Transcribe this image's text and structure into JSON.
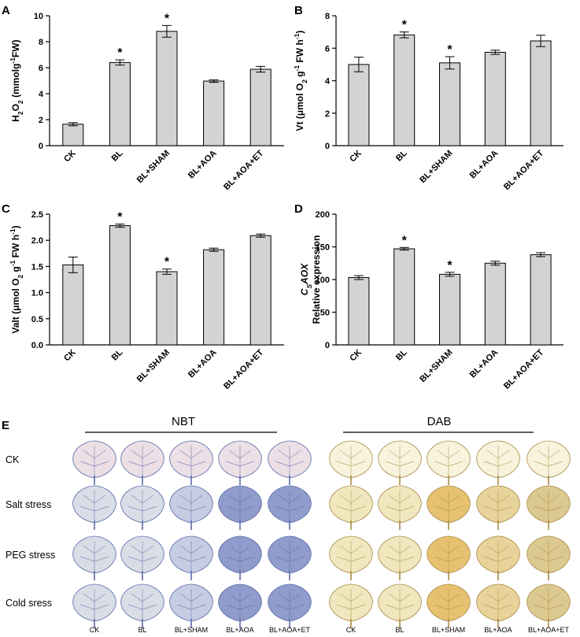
{
  "chart_data": [
    {
      "type": "bar",
      "panel": "A",
      "ylabel_parts": [
        [
          "H",
          ""
        ],
        [
          "2",
          "sub"
        ],
        [
          "O",
          ""
        ],
        [
          "2",
          "sub"
        ],
        [
          " (mmolg",
          ""
        ],
        [
          "-1",
          "sup"
        ],
        [
          "FW)",
          ""
        ]
      ],
      "ylim": [
        0,
        10
      ],
      "yticks": [
        0,
        2,
        4,
        6,
        8,
        10
      ],
      "categories": [
        "CK",
        "BL",
        "BL+SHAM",
        "BL+AOA",
        "BL+AOA+ET"
      ],
      "values": [
        1.65,
        6.4,
        8.8,
        4.97,
        5.88
      ],
      "errors": [
        0.12,
        0.2,
        0.45,
        0.1,
        0.22
      ],
      "significant": [
        "",
        "*",
        "*",
        "",
        ""
      ]
    },
    {
      "type": "bar",
      "panel": "B",
      "ylabel_parts": [
        [
          "Vt (μmol O",
          ""
        ],
        [
          "2",
          "sub"
        ],
        [
          " g",
          ""
        ],
        [
          "-1",
          "sup"
        ],
        [
          " FW h",
          ""
        ],
        [
          "-1",
          "sup"
        ],
        [
          ")",
          ""
        ]
      ],
      "ylim": [
        0,
        8
      ],
      "yticks": [
        0,
        2,
        4,
        6,
        8
      ],
      "categories": [
        "CK",
        "BL",
        "BL+SHAM",
        "BL+AOA",
        "BL+AOA+ET"
      ],
      "values": [
        5.0,
        6.82,
        5.1,
        5.75,
        6.45
      ],
      "errors": [
        0.45,
        0.18,
        0.38,
        0.13,
        0.35
      ],
      "significant": [
        "",
        "*",
        "*",
        "",
        ""
      ]
    },
    {
      "type": "bar",
      "panel": "C",
      "ylabel_parts": [
        [
          "Valt (μmol O",
          ""
        ],
        [
          "2",
          "sub"
        ],
        [
          " g",
          ""
        ],
        [
          "-1",
          "sup"
        ],
        [
          " FW h",
          ""
        ],
        [
          "-1",
          "sup"
        ],
        [
          ")",
          ""
        ]
      ],
      "ylim": [
        0,
        2.5
      ],
      "yticks": [
        "0.0",
        "0.5",
        "1.0",
        "1.5",
        "2.0",
        "2.5"
      ],
      "categories": [
        "CK",
        "BL",
        "BL+SHAM",
        "BL+AOA",
        "BL+AOA+ET"
      ],
      "values": [
        1.53,
        2.28,
        1.4,
        1.82,
        2.09
      ],
      "errors": [
        0.15,
        0.03,
        0.05,
        0.03,
        0.03
      ],
      "significant": [
        "",
        "*",
        "*",
        "",
        ""
      ]
    },
    {
      "type": "bar",
      "panel": "D",
      "ylabel_top_parts": [
        [
          "C",
          "it"
        ],
        [
          "S",
          "itsub"
        ],
        [
          "AOX",
          "it"
        ]
      ],
      "ylabel": "Relative expression",
      "ylim": [
        0,
        200
      ],
      "yticks": [
        0,
        50,
        100,
        150,
        200
      ],
      "categories": [
        "CK",
        "BL",
        "BL+SHAM",
        "BL+AOA",
        "BL+AOA+ET"
      ],
      "values": [
        103,
        147,
        108,
        125,
        138
      ],
      "errors": [
        3,
        2,
        3,
        3,
        3
      ],
      "significant": [
        "",
        "*",
        "*",
        "",
        ""
      ]
    }
  ],
  "panel_e": {
    "letter": "E",
    "left_header": "NBT",
    "right_header": "DAB",
    "rows": [
      "CK",
      "Salt stress",
      "PEG stress",
      "Cold sress"
    ],
    "columns": [
      "CK",
      "BL",
      "BL+SHAM",
      "BL+AOA",
      "BL+AOA+ET"
    ],
    "nbt_colors": [
      "#ecdfe6",
      "#d9dde6",
      "#c6cde2",
      "#8f9ccc",
      "#6676bc"
    ],
    "dab_colors": [
      "#f7f3dc",
      "#f0e7bf",
      "#e8d49a",
      "#e6c170",
      "#dcc98f"
    ]
  }
}
